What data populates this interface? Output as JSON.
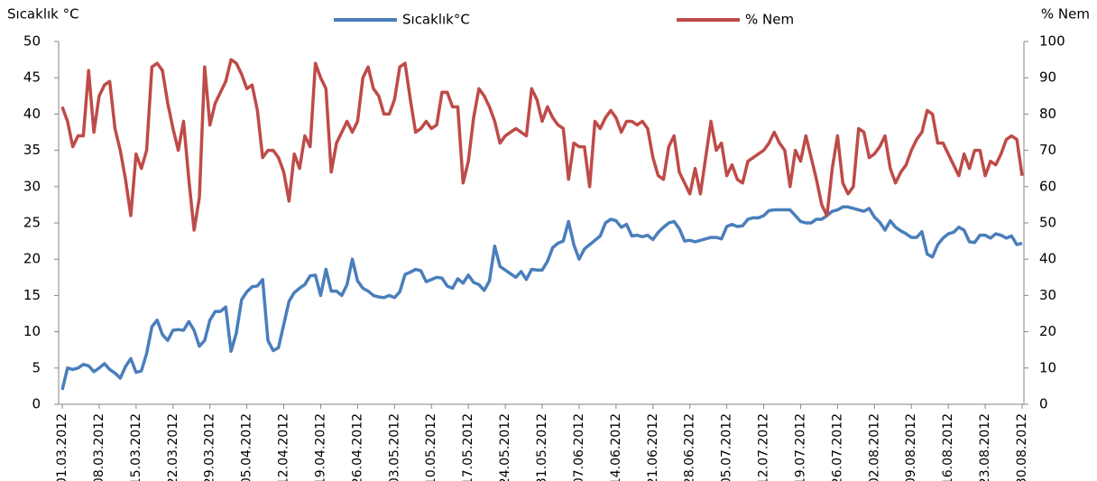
{
  "chart_data": {
    "type": "line",
    "y_label": "Sıcaklık °C",
    "y2_label": "% Nem",
    "categories": [
      "01.03.2012",
      null,
      null,
      null,
      null,
      null,
      null,
      "08.03.2012",
      null,
      null,
      null,
      null,
      null,
      null,
      "15.03.2012",
      null,
      null,
      null,
      null,
      null,
      null,
      "22.03.2012",
      null,
      null,
      null,
      null,
      null,
      null,
      "29.03.2012",
      null,
      null,
      null,
      null,
      null,
      null,
      "05.04.2012",
      null,
      null,
      null,
      null,
      null,
      null,
      "12.04.2012",
      null,
      null,
      null,
      null,
      null,
      null,
      "19.04.2012",
      null,
      null,
      null,
      null,
      null,
      null,
      "26.04.2012",
      null,
      null,
      null,
      null,
      null,
      null,
      "03.05.2012",
      null,
      null,
      null,
      null,
      null,
      null,
      "10.05.2012",
      null,
      null,
      null,
      null,
      null,
      null,
      "17.05.2012",
      null,
      null,
      null,
      null,
      null,
      null,
      "24.05.2012",
      null,
      null,
      null,
      null,
      null,
      null,
      "31.05.2012",
      null,
      null,
      null,
      null,
      null,
      null,
      "07.06.2012",
      null,
      null,
      null,
      null,
      null,
      null,
      "14.06.2012",
      null,
      null,
      null,
      null,
      null,
      null,
      "21.06.2012",
      null,
      null,
      null,
      null,
      null,
      null,
      "28.06.2012",
      null,
      null,
      null,
      null,
      null,
      null,
      "05.07.2012",
      null,
      null,
      null,
      null,
      null,
      null,
      "12.07.2012",
      null,
      null,
      null,
      null,
      null,
      null,
      "19.07.2012",
      null,
      null,
      null,
      null,
      null,
      null,
      "26.07.2012",
      null,
      null,
      null,
      null,
      null,
      null,
      "02.08.2012",
      null,
      null,
      null,
      null,
      null,
      null,
      "09.08.2012",
      null,
      null,
      null,
      null,
      null,
      null,
      "16.08.2012",
      null,
      null,
      null,
      null,
      null,
      null,
      "23.08.2012",
      null,
      null,
      null,
      null,
      null,
      null,
      "30.08.2012"
    ],
    "series": [
      {
        "name": "Sıcaklık°C",
        "color": "#4a7ebb",
        "axis": "y",
        "values": [
          2,
          5,
          4.8,
          5,
          5.5,
          5.3,
          4.5,
          5,
          5.6,
          4.8,
          4.3,
          3.6,
          5.2,
          6.3,
          4.4,
          4.6,
          7,
          10.7,
          11.6,
          9.6,
          8.8,
          10.2,
          10.3,
          10.2,
          11.4,
          10.2,
          8,
          8.8,
          11.6,
          12.8,
          12.8,
          13.4,
          7.3,
          9.8,
          14.4,
          15.5,
          16.2,
          16.3,
          17.2,
          8.8,
          7.4,
          7.8,
          11,
          14.2,
          15.4,
          16,
          16.5,
          17.7,
          17.8,
          15,
          18.6,
          15.6,
          15.6,
          15,
          16.5,
          20,
          17,
          16,
          15.6,
          15,
          14.8,
          14.7,
          15,
          14.7,
          15.5,
          17.9,
          18.2,
          18.6,
          18.4,
          16.9,
          17.2,
          17.5,
          17.4,
          16.3,
          16,
          17.3,
          16.7,
          17.8,
          16.8,
          16.5,
          15.7,
          17,
          21.8,
          19,
          18.5,
          18,
          17.5,
          18.3,
          17.2,
          18.6,
          18.5,
          18.5,
          19.7,
          21.6,
          22.2,
          22.5,
          25.2,
          22,
          20,
          21.4,
          22,
          22.6,
          23.2,
          25,
          25.5,
          25.3,
          24.4,
          24.8,
          23.2,
          23.3,
          23.1,
          23.3,
          22.7,
          23.7,
          24.4,
          25,
          25.2,
          24.2,
          22.5,
          22.6,
          22.4,
          22.6,
          22.8,
          23,
          23,
          22.8,
          24.5,
          24.8,
          24.5,
          24.6,
          25.5,
          25.7,
          25.7,
          26,
          26.7,
          26.8,
          26.8,
          26.8,
          26.8,
          26,
          25.2,
          25,
          25,
          25.5,
          25.5,
          26,
          26.6,
          26.8,
          27.2,
          27.2,
          27,
          26.8,
          26.6,
          27,
          25.8,
          25.1,
          24,
          25.3,
          24.4,
          23.9,
          23.5,
          23,
          23,
          23.8,
          20.7,
          20.3,
          22,
          22.9,
          23.5,
          23.7,
          24.4,
          24,
          22.4,
          22.3,
          23.3,
          23.3,
          22.9,
          23.5,
          23.3,
          22.9,
          23.2,
          22,
          22.2
        ]
      },
      {
        "name": "% Nem",
        "color": "#be4b48",
        "axis": "y2",
        "values": [
          82,
          78,
          71,
          74,
          74,
          92,
          75,
          85,
          88,
          89,
          76,
          70,
          62,
          52,
          69,
          65,
          70,
          93,
          94,
          92,
          83,
          76,
          70,
          78,
          62,
          48,
          57,
          93,
          77,
          83,
          86,
          89,
          95,
          94,
          91,
          87,
          88,
          81,
          68,
          70,
          70,
          68,
          64,
          56,
          69,
          65,
          74,
          71,
          94,
          90,
          87,
          64,
          72,
          75,
          78,
          75,
          78,
          90,
          93,
          87,
          85,
          80,
          80,
          84,
          93,
          94,
          84,
          75,
          76,
          78,
          76,
          77,
          86,
          86,
          82,
          82,
          61,
          67,
          79,
          87,
          85,
          82,
          78,
          72,
          74,
          75,
          76,
          75,
          74,
          87,
          84,
          78,
          82,
          79,
          77,
          76,
          62,
          72,
          71,
          71,
          60,
          78,
          76,
          79,
          81,
          79,
          75,
          78,
          78,
          77,
          78,
          76,
          68,
          63,
          62,
          71,
          74,
          64,
          61,
          58,
          65,
          58,
          68,
          78,
          70,
          72,
          63,
          66,
          62,
          61,
          67,
          68,
          69,
          70,
          72,
          75,
          72,
          70,
          60,
          70,
          67,
          74,
          68,
          62,
          55,
          52,
          65,
          74,
          61,
          58,
          60,
          76,
          75,
          68,
          69,
          71,
          74,
          65,
          61,
          64,
          66,
          70,
          73,
          75,
          81,
          80,
          72,
          72,
          69,
          66,
          63,
          69,
          65,
          70,
          70,
          63,
          67,
          66,
          69,
          73,
          74,
          73,
          63
        ]
      }
    ],
    "ylim": [
      0,
      50
    ],
    "yticks": [
      0,
      5,
      10,
      15,
      20,
      25,
      30,
      35,
      40,
      45,
      50
    ],
    "y2lim": [
      0,
      100
    ],
    "y2ticks": [
      0,
      10,
      20,
      30,
      40,
      50,
      60,
      70,
      80,
      90,
      100
    ],
    "grid": false,
    "legend": "top"
  }
}
